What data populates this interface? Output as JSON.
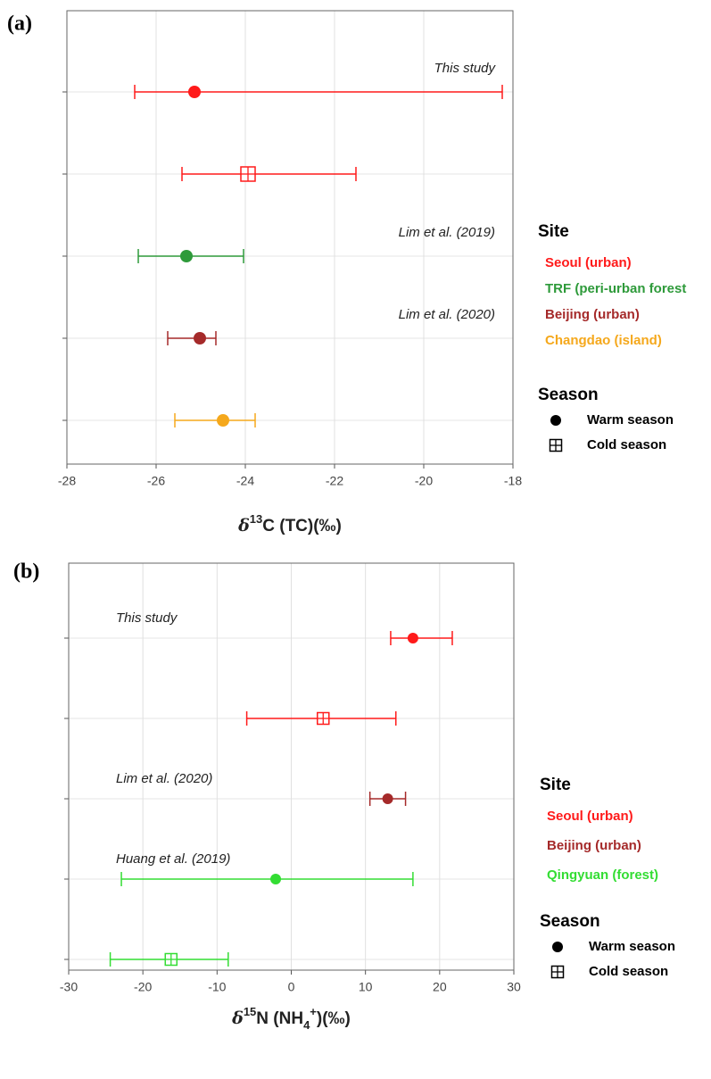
{
  "chart_data": [
    {
      "type": "dot_errorbar",
      "panel_label": "(a)",
      "x_label_parts": [
        {
          "text": "δ"
        },
        {
          "text": "13",
          "script": "sup"
        },
        {
          "text": "C (TC)(‰)"
        }
      ],
      "xlim": [
        -28,
        -18
      ],
      "xticks": [
        -28,
        -26,
        -24,
        -22,
        -20,
        -18
      ],
      "grid": true,
      "series": [
        {
          "name": "Seoul (urban)",
          "color": "#ff1a1a",
          "source": "This study",
          "points": [
            {
              "marker": "filled",
              "value": -25.14,
              "lower": -26.48,
              "upper": -18.24
            },
            {
              "marker": "box",
              "value": -23.94,
              "lower": -25.42,
              "upper": -21.52
            }
          ]
        },
        {
          "name": "TRF (peri-urban forest",
          "color": "#2e9a3a",
          "source": "Lim et al. (2019)",
          "points": [
            {
              "marker": "filled",
              "value": -25.32,
              "lower": -26.4,
              "upper": -24.04
            }
          ]
        },
        {
          "name": "Beijing (urban)",
          "color": "#a52a2a",
          "source": "Lim et al. (2020)",
          "points": [
            {
              "marker": "filled",
              "value": -25.02,
              "lower": -25.74,
              "upper": -24.66
            }
          ]
        },
        {
          "name": "Changdao (island)",
          "color": "#f5a81c",
          "points": [
            {
              "marker": "filled",
              "value": -24.5,
              "lower": -25.58,
              "upper": -23.78
            }
          ]
        }
      ],
      "legend_title": "Site",
      "season_title": "Season",
      "seasons": [
        {
          "name": "Warm season",
          "marker": "filled"
        },
        {
          "name": "Cold season",
          "marker": "box"
        }
      ]
    },
    {
      "type": "dot_errorbar",
      "panel_label": "(b)",
      "x_label_parts": [
        {
          "text": "δ"
        },
        {
          "text": "15",
          "script": "sup"
        },
        {
          "text": "N (NH"
        },
        {
          "text": "4",
          "script": "sub"
        },
        {
          "text": "+",
          "script": "sup"
        },
        {
          "text": ")(‰)"
        }
      ],
      "xlim": [
        -30,
        30
      ],
      "xticks": [
        -30,
        -20,
        -10,
        0,
        10,
        20,
        30
      ],
      "grid": true,
      "series": [
        {
          "name": "Seoul (urban)",
          "color": "#ff1a1a",
          "source": "This study",
          "points": [
            {
              "marker": "filled",
              "value": 16.4,
              "lower": 13.4,
              "upper": 21.7
            },
            {
              "marker": "box",
              "value": 4.3,
              "lower": -6.0,
              "upper": 14.1
            }
          ]
        },
        {
          "name": "Beijing (urban)",
          "color": "#a52a2a",
          "source": "Lim et al. (2020)",
          "points": [
            {
              "marker": "filled",
              "value": 13.0,
              "lower": 10.6,
              "upper": 15.4
            }
          ]
        },
        {
          "name": "Qingyuan (forest)",
          "color": "#33dd33",
          "source": "Huang et al. (2019)",
          "points": [
            {
              "marker": "filled",
              "value": -2.1,
              "lower": -22.9,
              "upper": 16.4
            },
            {
              "marker": "box",
              "value": -16.2,
              "lower": -24.4,
              "upper": -8.5
            }
          ]
        }
      ],
      "legend_title": "Site",
      "season_title": "Season",
      "seasons": [
        {
          "name": "Warm season",
          "marker": "filled"
        },
        {
          "name": "Cold season",
          "marker": "box"
        }
      ]
    }
  ]
}
